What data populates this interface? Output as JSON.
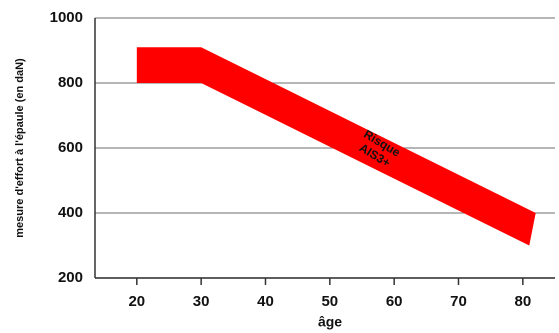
{
  "chart_data": {
    "type": "range-area",
    "x_label": "âge",
    "y_label": "mesure d'effort à l'épaule (en daN)",
    "upper": {
      "x": [
        20,
        30,
        82
      ],
      "values": [
        910,
        910,
        400
      ]
    },
    "lower": {
      "x": [
        20,
        30,
        81
      ],
      "values": [
        800,
        800,
        300
      ]
    },
    "color": "#ff0000",
    "annotation": [
      "Risque",
      "AIS3+"
    ],
    "xlim": [
      13.5,
      85
    ],
    "xticks": [
      20,
      30,
      40,
      50,
      60,
      70,
      80
    ],
    "ylim": [
      200,
      1000
    ],
    "yticks": [
      200,
      400,
      600,
      800,
      1000
    ],
    "grid": true
  }
}
